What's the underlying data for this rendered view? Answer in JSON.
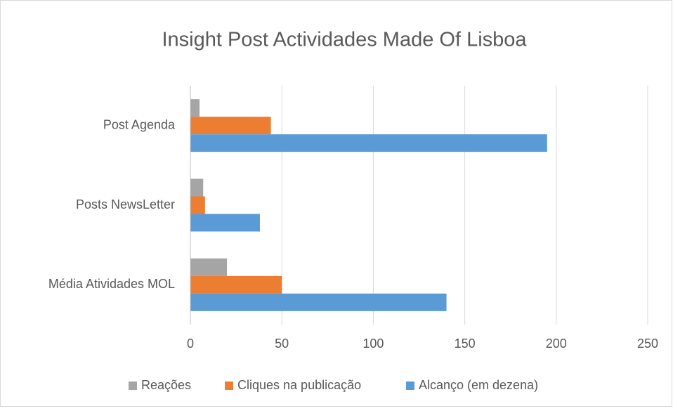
{
  "chart_data": {
    "type": "barh",
    "title": "Insight Post Actividades Made Of Lisboa",
    "categories": [
      "Post Agenda",
      "Posts NewsLetter",
      "Média Atividades MOL"
    ],
    "series": [
      {
        "name": "Reações",
        "color": "#a5a5a5",
        "values": [
          5,
          7,
          20
        ]
      },
      {
        "name": "Cliques na publicação",
        "color": "#ed7d31",
        "values": [
          44,
          8,
          50
        ]
      },
      {
        "name": "Alcanço (em dezena)",
        "color": "#5b9bd5",
        "values": [
          195,
          38,
          140
        ]
      }
    ],
    "xlim": [
      0,
      250
    ],
    "xticks": [
      0,
      50,
      100,
      150,
      200,
      250
    ],
    "grid": true,
    "legend": "bottom"
  }
}
